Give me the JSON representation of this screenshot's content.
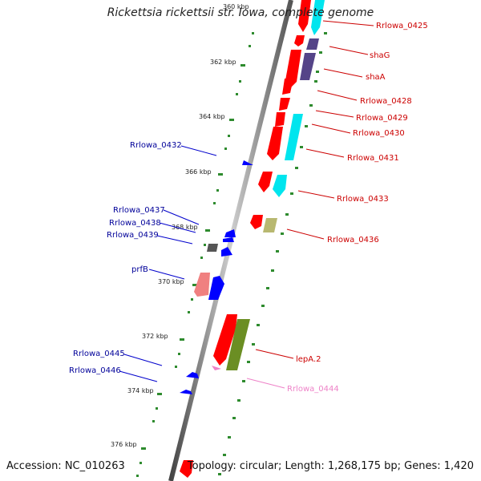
{
  "title": "Rickettsia rickettsii str. Iowa, complete genome",
  "footer": {
    "accession": "Accession: NC_010263",
    "summary": "Topology: circular; Length: 1,268,175 bp; Genes: 1,420"
  },
  "ticks": [
    "360 kbp",
    "362 kbp",
    "364 kbp",
    "366 kbp",
    "368 kbp",
    "370 kbp",
    "372 kbp",
    "374 kbp",
    "376 kbp"
  ],
  "labels": {
    "right": [
      "Rrlowa_0425",
      "shaG",
      "shaA",
      "Rrlowa_0428",
      "Rrlowa_0429",
      "Rrlowa_0430",
      "Rrlowa_0431",
      "Rrlowa_0433",
      "Rrlowa_0436",
      "lepA.2",
      "Rrlowa_0444"
    ],
    "left": [
      "Rrlowa_0432",
      "Rrlowa_0437",
      "Rrlowa_0438",
      "Rrlowa_0439",
      "prfB",
      "Rrlowa_0445",
      "Rrlowa_0446"
    ]
  },
  "colors": {
    "red": "#ff0000",
    "cyan": "#00e5ee",
    "purple": "#554488",
    "blue": "#0000ff",
    "olive": "#b8b870",
    "gray": "#555555",
    "pink": "#f08080",
    "green": "#6b8e23",
    "lightpink": "#ee82c8",
    "dark_label": "#000099",
    "red_label": "#cc0000",
    "pink_label": "#ee82c8"
  }
}
